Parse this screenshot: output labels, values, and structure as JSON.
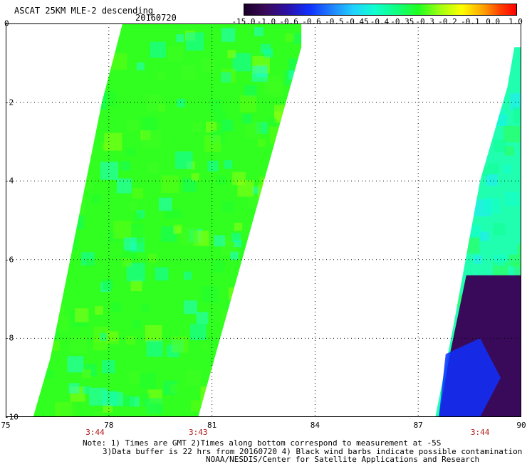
{
  "header": {
    "title": "ASCAT 25KM MLE-2 descending",
    "date": "20160720"
  },
  "colorbar": {
    "labels": [
      "-15.0",
      "-1.0",
      "-0.6",
      "-0.6",
      "-0.5",
      "-0.45",
      "-0.4",
      "-0.35",
      "-0.3",
      "-0.2",
      "-0.1",
      "0.0",
      "1.0"
    ],
    "colors": [
      "#1a0028",
      "#3a0a5a",
      "#2a10a8",
      "#1030ff",
      "#2080ff",
      "#20d0ff",
      "#10ffd0",
      "#10ff80",
      "#20ff20",
      "#a0ff10",
      "#ffff00",
      "#ffa000",
      "#ff0000"
    ]
  },
  "map": {
    "lon_range": [
      75,
      90
    ],
    "lat_range": [
      0,
      -10
    ],
    "x_ticks": [
      "75",
      "78",
      "81",
      "84",
      "87",
      "90"
    ],
    "y_ticks": [
      "0",
      "-2",
      "-4",
      "-6",
      "-8",
      "-10"
    ],
    "time_labels": [
      {
        "label": "3:44",
        "lon": 77.6
      },
      {
        "label": "3:43",
        "lon": 80.6
      },
      {
        "label": "3:44",
        "lon": 88.8
      }
    ],
    "swaths": [
      {
        "name": "left-swath",
        "polygon": [
          [
            78.4,
            0
          ],
          [
            83.6,
            0
          ],
          [
            83.6,
            -0.6
          ],
          [
            80.6,
            -10
          ],
          [
            75.8,
            -10
          ],
          [
            76.3,
            -8.5
          ],
          [
            77.8,
            -2
          ]
        ],
        "base_color": "#30ff20"
      },
      {
        "name": "right-swath",
        "polygon": [
          [
            89.8,
            -0.6
          ],
          [
            90,
            -0.6
          ],
          [
            90,
            -10
          ],
          [
            87.5,
            -10
          ],
          [
            88.0,
            -7.8
          ],
          [
            88.8,
            -4
          ],
          [
            89.6,
            -1.6
          ]
        ],
        "base_color": "#20ffb0"
      }
    ],
    "dark_regions": [
      {
        "name": "right-low-region",
        "polygon": [
          [
            88.4,
            -6.4
          ],
          [
            90,
            -6.4
          ],
          [
            90,
            -10
          ],
          [
            87.6,
            -10
          ],
          [
            87.9,
            -8.5
          ]
        ],
        "color": "#3a0a5a"
      }
    ]
  },
  "footer": {
    "note1": "Note: 1) Times are GMT 2)Times along bottom correspond to measurement at -5S",
    "note2": "3)Data buffer is 22 hrs from 20160720 4) Black wind barbs indicate possible contamination",
    "credit": "NOAA/NESDIS/Center for Satellite Applications and Research"
  }
}
